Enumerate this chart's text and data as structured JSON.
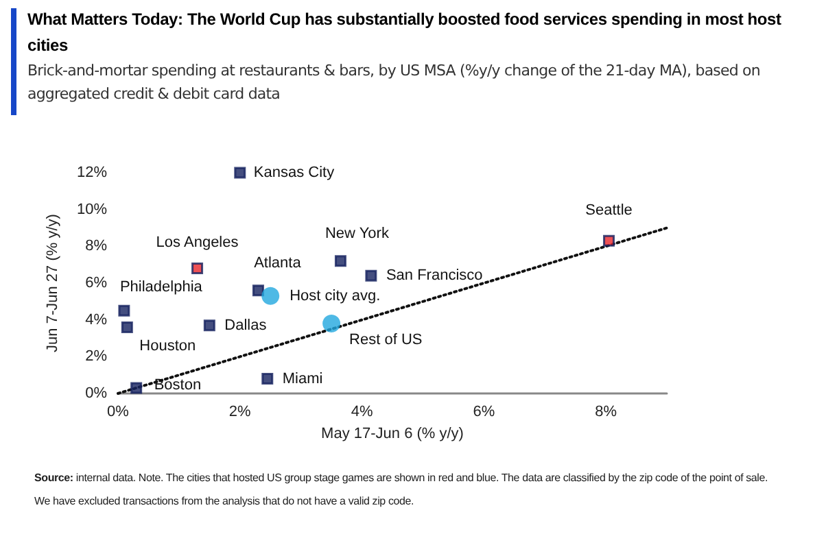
{
  "chart_data": {
    "type": "scatter",
    "title": "What Matters Today: The World Cup has substantially boosted food services spending in most host cities",
    "subtitle": "Brick-and-mortar spending at restaurants & bars, by US MSA (%y/y change of the 21-day MA), based on aggregated credit & debit card data",
    "xlabel": "May 17-Jun 6 (% y/y)",
    "ylabel": "Jun 7-Jun 27 (% y/y)",
    "series": [
      {
        "marker": "square",
        "color": "#15225f",
        "x": [
          2.0,
          1.3,
          0.1,
          0.15,
          1.5,
          2.3,
          3.65,
          4.15,
          0.3,
          2.45,
          8.05
        ],
        "values": [
          12.0,
          6.8,
          4.5,
          3.6,
          3.7,
          5.6,
          7.2,
          6.4,
          0.3,
          0.8,
          8.3
        ],
        "colors": [
          "#15225f",
          "#e8262b",
          "#15225f",
          "#15225f",
          "#15225f",
          "#15225f",
          "#15225f",
          "#15225f",
          "#15225f",
          "#15225f",
          "#e8262b"
        ]
      },
      {
        "marker": "circle",
        "color": "#22a7de",
        "x": [
          2.5,
          3.5
        ],
        "values": [
          5.3,
          3.8
        ]
      },
      {
        "type": "line",
        "line_style": "dotted",
        "marker": "none",
        "color": "#111111",
        "x": [
          0,
          9
        ],
        "values": [
          0,
          9
        ]
      }
    ],
    "annotations": [
      {
        "text": "Kansas City",
        "x": 2.0,
        "y": 12.0
      },
      {
        "text": "Los Angeles",
        "x": 1.3,
        "y": 6.8
      },
      {
        "text": "Philadelphia",
        "x": 0.1,
        "y": 4.5
      },
      {
        "text": "Houston",
        "x": 0.15,
        "y": 3.6
      },
      {
        "text": "Dallas",
        "x": 1.5,
        "y": 3.7
      },
      {
        "text": "Atlanta",
        "x": 2.3,
        "y": 5.6
      },
      {
        "text": "New York",
        "x": 3.65,
        "y": 7.2
      },
      {
        "text": "San Francisco",
        "x": 4.15,
        "y": 6.4
      },
      {
        "text": "Boston",
        "x": 0.3,
        "y": 0.3
      },
      {
        "text": "Miami",
        "x": 2.45,
        "y": 0.8
      },
      {
        "text": "Seattle",
        "x": 8.05,
        "y": 8.3
      },
      {
        "text": "Host city avg.",
        "x": 2.5,
        "y": 5.3
      },
      {
        "text": "Rest of US",
        "x": 3.5,
        "y": 3.8
      },
      "Source: internal data. Note. The cities that hosted US group stage games are shown in red and blue. The data are classified by the zip code of the point of sale. We have excluded transactions from the analysis that do not have a valid zip code."
    ],
    "xlim": [
      0,
      9
    ],
    "xticks": [
      {
        "value": 0,
        "label": "0%"
      },
      {
        "value": 2,
        "label": "2%"
      },
      {
        "value": 4,
        "label": "4%"
      },
      {
        "value": 6,
        "label": "6%"
      },
      {
        "value": 8,
        "label": "8%"
      }
    ],
    "ylim": [
      0,
      12
    ],
    "yticks": [
      {
        "value": 0,
        "label": "0%"
      },
      {
        "value": 2,
        "label": "2%"
      },
      {
        "value": 4,
        "label": "4%"
      },
      {
        "value": 6,
        "label": "6%"
      },
      {
        "value": 8,
        "label": "8%"
      },
      {
        "value": 10,
        "label": "10%"
      },
      {
        "value": 12,
        "label": "12%"
      }
    ],
    "grid": false
  }
}
